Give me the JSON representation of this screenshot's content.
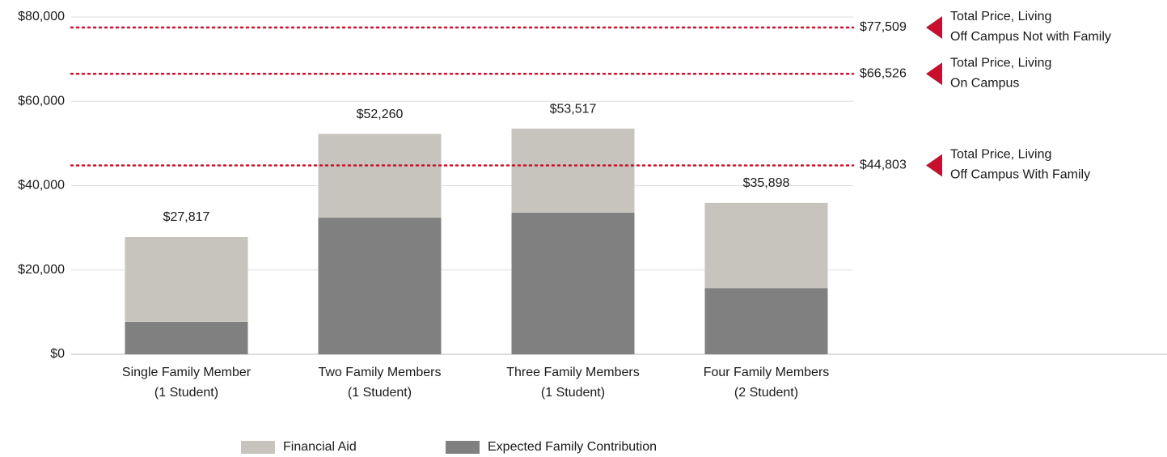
{
  "chart_data": {
    "type": "stacked_bar",
    "categories": [
      [
        "Single Family Member",
        "(1 Student)"
      ],
      [
        "Two Family Members",
        "(1 Student)"
      ],
      [
        "Three Family Members",
        "(1 Student)"
      ],
      [
        "Four Family Members",
        "(2 Student)"
      ]
    ],
    "series": [
      {
        "name": "Expected Family Contribution",
        "color": "#808080",
        "values": [
          7700,
          32400,
          33600,
          15700
        ]
      },
      {
        "name": "Financial Aid",
        "color": "#c7c4bd",
        "values": [
          20117,
          19860,
          19917,
          20198
        ]
      }
    ],
    "legend_order": [
      1,
      0
    ],
    "totals": [
      27817,
      52260,
      53517,
      35898
    ],
    "total_labels": [
      "$27,817",
      "$52,260",
      "$53,517",
      "$35,898"
    ],
    "reference_lines": [
      {
        "value": 77509,
        "value_label": "$77,509",
        "text": [
          "Total Price, Living",
          "Off Campus Not with Family"
        ]
      },
      {
        "value": 66526,
        "value_label": "$66,526",
        "text": [
          "Total Price, Living",
          "On Campus"
        ]
      },
      {
        "value": 44803,
        "value_label": "$44,803",
        "text": [
          "Total Price, Living",
          "Off Campus With Family"
        ]
      }
    ],
    "reference_color": "#c8102e",
    "ylim": [
      0,
      80000
    ],
    "yticks": [
      {
        "value": 0,
        "label": "$0"
      },
      {
        "value": 20000,
        "label": "$20,000"
      },
      {
        "value": 40000,
        "label": "$40,000"
      },
      {
        "value": 60000,
        "label": "$60,000"
      },
      {
        "value": 80000,
        "label": "$80,000"
      }
    ],
    "grid": true
  }
}
